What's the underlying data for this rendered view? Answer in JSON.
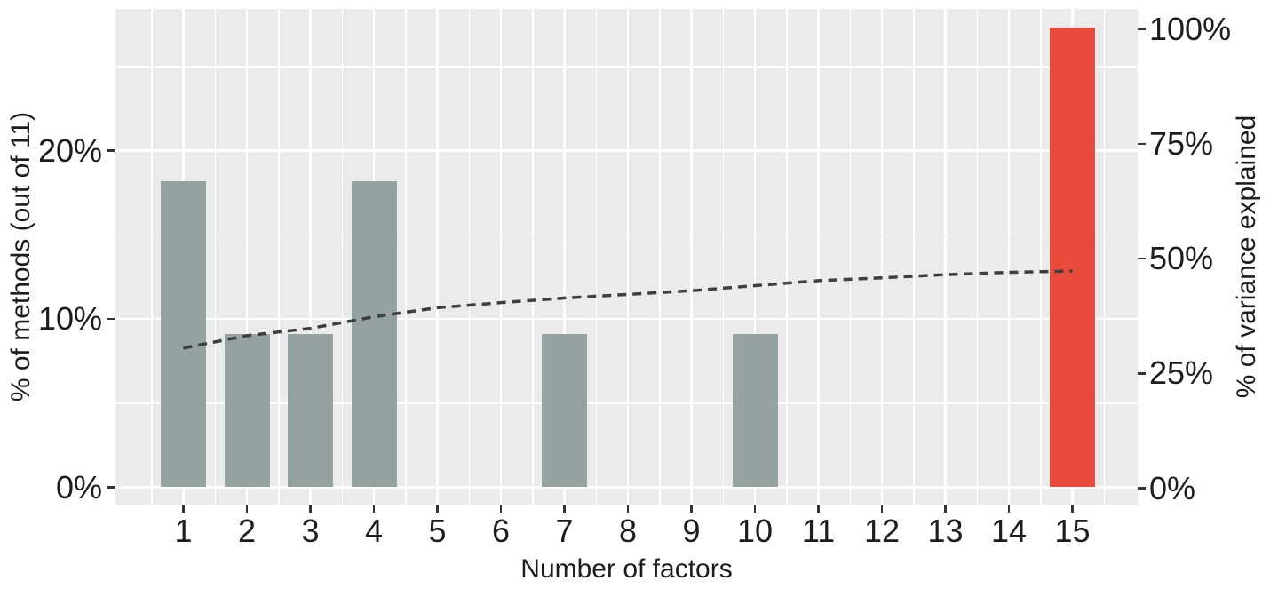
{
  "chart_data": {
    "type": "bar",
    "subtype": "dual-axis bar + dashed line",
    "categories": [
      "1",
      "2",
      "3",
      "4",
      "5",
      "6",
      "7",
      "8",
      "9",
      "10",
      "11",
      "12",
      "13",
      "14",
      "15"
    ],
    "series": [
      {
        "name": "% of methods (out of 11)",
        "type": "bar",
        "axis": "left",
        "values": [
          18.2,
          9.1,
          9.1,
          18.2,
          0,
          0,
          9.1,
          0,
          0,
          9.1,
          0,
          0,
          0,
          0,
          27.3
        ],
        "highlight_index": 14
      },
      {
        "name": "% of variance explained",
        "type": "line",
        "style": "dashed",
        "axis": "right",
        "values": [
          30.5,
          33.2,
          34.8,
          37.3,
          39.3,
          40.4,
          41.4,
          42.2,
          43.0,
          44.1,
          45.2,
          45.8,
          46.5,
          47.0,
          47.3
        ]
      }
    ],
    "title": "",
    "xlabel": "Number of factors",
    "ylabel_left": "% of methods (out of 11)",
    "ylabel_right": "% of variance explained",
    "left_axis": {
      "ticks": [
        {
          "value": 0,
          "label": "0%"
        },
        {
          "value": 10,
          "label": "10%"
        },
        {
          "value": 20,
          "label": "20%"
        }
      ],
      "minor_grid_values": [
        5,
        15,
        25
      ],
      "range": [
        -1.4,
        28.7
      ]
    },
    "right_axis": {
      "ticks": [
        {
          "value": 0,
          "label": "0%"
        },
        {
          "value": 25,
          "label": "25%"
        },
        {
          "value": 50,
          "label": "50%"
        },
        {
          "value": 75,
          "label": "75%"
        },
        {
          "value": 100,
          "label": "100%"
        }
      ],
      "range": [
        -5.1,
        105.2
      ]
    },
    "grid": "major and minor, white on gray panel",
    "legend": "none",
    "colors": {
      "bar_default": "#94a2a2",
      "bar_highlight": "#e84b3c",
      "line": "#3f3f3f",
      "panel_background": "#ebebeb",
      "gridline": "#ffffff",
      "tick_mark": "#333333",
      "text": "#1c1c1c"
    }
  }
}
